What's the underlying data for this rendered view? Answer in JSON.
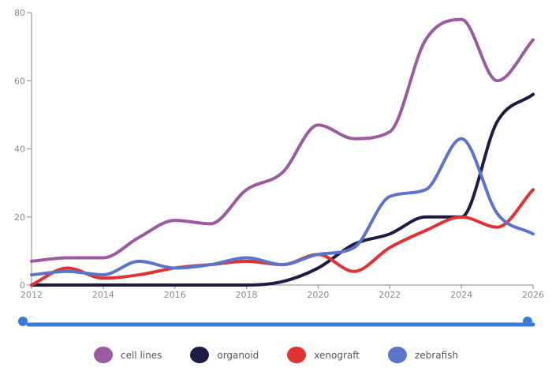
{
  "chart_data": {
    "type": "line",
    "title": "",
    "xlabel": "",
    "ylabel": "",
    "x": [
      2012,
      2013,
      2014,
      2015,
      2016,
      2017,
      2018,
      2019,
      2020,
      2021,
      2022,
      2023,
      2024,
      2025,
      2026
    ],
    "xlim": [
      2012,
      2026
    ],
    "ylim": [
      0,
      80
    ],
    "x_ticks": [
      "2012",
      "2014",
      "2016",
      "2018",
      "2020",
      "2022",
      "2024",
      "2026"
    ],
    "y_ticks": [
      "0",
      "20",
      "40",
      "60",
      "80"
    ],
    "grid": false,
    "legend_position": "bottom",
    "series": [
      {
        "name": "cell lines",
        "color": "#9b59a0",
        "values": [
          7,
          8,
          8,
          14,
          19,
          18,
          28,
          33,
          47,
          43,
          45,
          72,
          78,
          60,
          72
        ]
      },
      {
        "name": "organoid",
        "color": "#1c1c45",
        "values": [
          0,
          0,
          0,
          0,
          0,
          0,
          0,
          1,
          5,
          12,
          15,
          20,
          20,
          48,
          56
        ]
      },
      {
        "name": "xenograft",
        "color": "#e03232",
        "values": [
          0,
          5,
          2,
          3,
          5,
          6,
          7,
          6,
          9,
          4,
          11,
          16,
          20,
          17,
          28
        ]
      },
      {
        "name": "zebrafish",
        "color": "#5b74c9",
        "values": [
          3,
          4,
          3,
          7,
          5,
          6,
          8,
          6,
          9,
          11,
          26,
          28,
          43,
          21,
          15
        ]
      }
    ]
  },
  "slider": {
    "color": "#3a7bd5",
    "range_start": "2012",
    "range_end": "2026"
  }
}
